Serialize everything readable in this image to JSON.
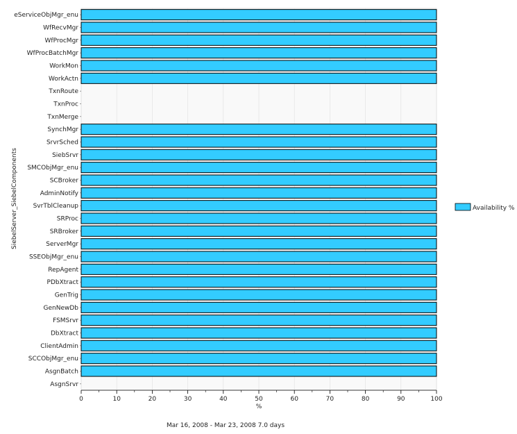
{
  "chart_data": {
    "type": "bar",
    "orientation": "horizontal",
    "categories": [
      "eServiceObjMgr_enu",
      "WfRecvMgr",
      "WfProcMgr",
      "WfProcBatchMgr",
      "WorkMon",
      "WorkActn",
      "TxnRoute",
      "TxnProc",
      "TxnMerge",
      "SynchMgr",
      "SrvrSched",
      "SiebSrvr",
      "SMCObjMgr_enu",
      "SCBroker",
      "AdminNotify",
      "SvrTblCleanup",
      "SRProc",
      "SRBroker",
      "ServerMgr",
      "SSEObjMgr_enu",
      "RepAgent",
      "PDbXtract",
      "GenTrig",
      "GenNewDb",
      "FSMSrvr",
      "DbXtract",
      "ClientAdmin",
      "SCCObjMgr_enu",
      "AsgnBatch",
      "AsgnSrvr"
    ],
    "series": [
      {
        "name": "Availability %",
        "values": [
          100,
          100,
          100,
          100,
          100,
          100,
          0,
          0,
          0,
          100,
          100,
          100,
          100,
          100,
          100,
          100,
          100,
          100,
          100,
          100,
          100,
          100,
          100,
          100,
          100,
          100,
          100,
          100,
          100,
          0
        ],
        "color": "#33ccff"
      }
    ],
    "xlim": [
      0,
      100
    ],
    "xticks": [
      "0",
      "10",
      "20",
      "30",
      "40",
      "50",
      "60",
      "70",
      "80",
      "90",
      "100"
    ],
    "xlabel": "%",
    "ylabel": "SiebelServer_SiebelComponents",
    "subtitle": "Mar 16, 2008 - Mar 23, 2008  7.0 days",
    "legend_position": "right",
    "grid": true,
    "colors": {
      "bar_fill": "#33ccff",
      "bar_stroke": "#000000",
      "plot_bg": "#f9f9f9",
      "grid": "#e3e3e3"
    }
  }
}
